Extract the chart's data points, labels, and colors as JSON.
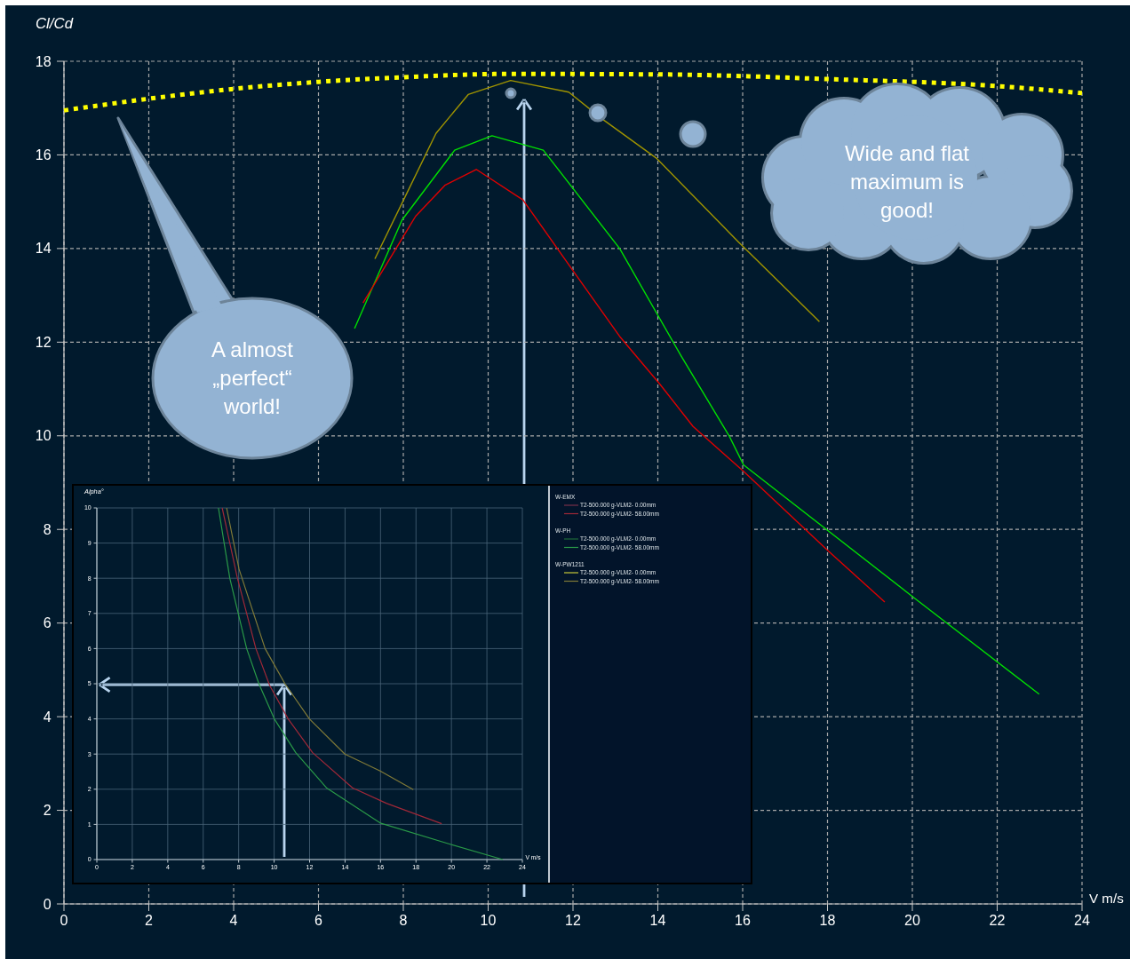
{
  "chart_data": [
    {
      "type": "line",
      "xlabel": "V m/s",
      "ylabel": "Cl/Cd",
      "xlim": [
        0,
        24
      ],
      "xticks": [
        0,
        2,
        4,
        6,
        8,
        10,
        12,
        14,
        16,
        18,
        20,
        22,
        24
      ],
      "ylim": [
        0,
        18
      ],
      "yticks": [
        0,
        2,
        4,
        6,
        8,
        10,
        12,
        14,
        16,
        18
      ],
      "grid": true,
      "annotations": [
        "A almost „perfect“ world!",
        "Wide and flat maximum is good!"
      ],
      "series": [
        {
          "color": "#ffff00",
          "line_style": "dotted",
          "x": [
            0,
            2,
            4,
            6,
            8,
            10.5,
            14,
            18,
            22,
            24
          ],
          "values": [
            16.95,
            17.2,
            17.41,
            17.56,
            17.66,
            17.73,
            17.72,
            17.62,
            17.47,
            17.32
          ]
        },
        {
          "color": "#a09400",
          "x": [
            7.33,
            8.05,
            8.77,
            9.53,
            10.53,
            11.9,
            12.7,
            13.98,
            15.9,
            17.81
          ],
          "values": [
            13.78,
            15.12,
            16.46,
            17.29,
            17.59,
            17.34,
            16.76,
            15.92,
            14.14,
            12.44
          ]
        },
        {
          "color": "#00e000",
          "x": [
            6.85,
            7.97,
            9.21,
            10.09,
            11.3,
            13.1,
            14.54,
            15.68,
            16.02,
            20.04,
            22.99
          ],
          "values": [
            12.29,
            14.61,
            16.1,
            16.41,
            16.1,
            14.0,
            11.72,
            10.0,
            9.38,
            6.54,
            4.48
          ]
        },
        {
          "color": "#e00000",
          "x": [
            7.05,
            8.29,
            8.98,
            9.72,
            10.82,
            12.06,
            13.12,
            14.05,
            14.83,
            16.02,
            18.03,
            19.35
          ],
          "values": [
            12.84,
            14.69,
            15.35,
            15.69,
            15.04,
            13.45,
            12.1,
            11.1,
            10.2,
            9.24,
            7.53,
            6.45
          ]
        }
      ]
    },
    {
      "type": "line",
      "xlabel": "V m/s",
      "ylabel": "Alpha°",
      "xlim": [
        0,
        24
      ],
      "xticks": [
        0,
        2,
        4,
        6,
        8,
        10,
        12,
        14,
        16,
        18,
        20,
        22,
        24
      ],
      "ylim": [
        0,
        10
      ],
      "yticks": [
        0,
        1,
        2,
        3,
        4,
        5,
        6,
        7,
        8,
        9,
        10
      ],
      "grid": true,
      "legend": "right",
      "annotations": [
        "W-EMX",
        "W-PH",
        "W-PW1211"
      ],
      "series": [
        {
          "name": "T2-500.000 g-VLM2- 0.00mm",
          "color": "#7a3048",
          "values": [
            null
          ]
        },
        {
          "name": "T2-500.000 g-VLM2- 58.00mm",
          "color": "#a02838",
          "x": [
            7.07,
            7.93,
            8.97,
            9.75,
            10.79,
            12.17,
            14.42,
            16.33,
            19.45
          ],
          "values": [
            10,
            8,
            6,
            4.95,
            4,
            3.04,
            2.04,
            1.6,
            1.02
          ]
        },
        {
          "name": "T2-500.000 g-VLM2- 0.00mm",
          "color": "#1f6a38",
          "values": [
            null
          ]
        },
        {
          "name": "T2-500.000 g-VLM2- 58.00mm",
          "color": "#2a9a48",
          "x": [
            6.86,
            7.5,
            8.45,
            9.14,
            10.01,
            11.22,
            12.95,
            15.98,
            19.97,
            22.9
          ],
          "values": [
            10,
            8,
            6,
            5,
            4,
            3.04,
            2.04,
            1.04,
            0.43,
            0
          ]
        },
        {
          "name": "T2-500.000 g-VLM2- 0.00mm",
          "color": "#c8c838",
          "values": [
            null
          ]
        },
        {
          "name": "T2-500.000 g-VLM2- 58.00mm",
          "color": "#807a38",
          "x": [
            7.32,
            8.02,
            9.49,
            10.61,
            11.99,
            13.99,
            15.98,
            17.85
          ],
          "values": [
            10,
            8.26,
            6,
            5,
            4,
            3,
            2.52,
            1.99
          ]
        }
      ]
    }
  ]
}
